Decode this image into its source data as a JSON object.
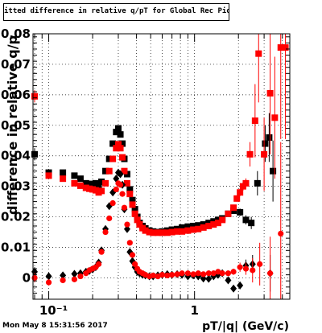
{
  "title": "itted difference in relative q/pT for Global Rec Pion EtapT",
  "timestamp": "Mon May  8 15:31:56 2017",
  "chart_data": {
    "type": "scatter",
    "xlabel": "pT/|q| (GeV/c)",
    "ylabel": "difference in relative q/p",
    "xscale": "log",
    "xlim": [
      0.078,
      4.5
    ],
    "ylim": [
      -0.007,
      0.08
    ],
    "grid": true,
    "yticks": [
      0,
      0.01,
      0.02,
      0.03,
      0.04,
      0.05,
      0.06,
      0.07,
      0.08
    ],
    "ytick_labels": [
      "0",
      "0.01",
      "0.02",
      "0.03",
      "0.04",
      "0.05",
      "0.06",
      "0.07",
      "0.08"
    ],
    "xticks": [
      0.1,
      1
    ],
    "xtick_labels": [
      "10⁻¹",
      "1"
    ],
    "colors": {
      "black": "#000000",
      "red": "#ff0000"
    },
    "series": [
      {
        "color": "black",
        "marker": "square",
        "points": [
          [
            0.08,
            0.0405,
            0.002
          ],
          [
            0.1,
            0.0345,
            0.0008
          ],
          [
            0.125,
            0.0345,
            0.0008
          ],
          [
            0.15,
            0.0335,
            0.0006
          ],
          [
            0.165,
            0.0325,
            0.0005
          ],
          [
            0.18,
            0.031,
            0.0005
          ],
          [
            0.19,
            0.0308,
            0.0005
          ],
          [
            0.2,
            0.0305,
            0.0005
          ],
          [
            0.21,
            0.031,
            0.0005
          ],
          [
            0.22,
            0.0303,
            0.0005
          ],
          [
            0.23,
            0.0315,
            0.0005
          ],
          [
            0.245,
            0.035,
            0.0005
          ],
          [
            0.26,
            0.039,
            0.0005
          ],
          [
            0.275,
            0.044,
            0.0005
          ],
          [
            0.29,
            0.0478,
            0.0005
          ],
          [
            0.3,
            0.049,
            0.0005
          ],
          [
            0.31,
            0.047,
            0.0005
          ],
          [
            0.32,
            0.044,
            0.0005
          ],
          [
            0.33,
            0.039,
            0.0005
          ],
          [
            0.345,
            0.034,
            0.0005
          ],
          [
            0.36,
            0.029,
            0.0005
          ],
          [
            0.375,
            0.0255,
            0.0005
          ],
          [
            0.39,
            0.0225,
            0.0005
          ],
          [
            0.405,
            0.02,
            0.0005
          ],
          [
            0.42,
            0.018,
            0.0005
          ],
          [
            0.44,
            0.017,
            0.0005
          ],
          [
            0.46,
            0.0162,
            0.0005
          ],
          [
            0.49,
            0.0155,
            0.0005
          ],
          [
            0.52,
            0.0152,
            0.0005
          ],
          [
            0.56,
            0.015,
            0.0005
          ],
          [
            0.6,
            0.0152,
            0.0005
          ],
          [
            0.65,
            0.0155,
            0.0005
          ],
          [
            0.7,
            0.0158,
            0.0005
          ],
          [
            0.76,
            0.016,
            0.0005
          ],
          [
            0.82,
            0.0165,
            0.0005
          ],
          [
            0.9,
            0.0168,
            0.0005
          ],
          [
            0.98,
            0.017,
            0.0005
          ],
          [
            1.06,
            0.0172,
            0.0005
          ],
          [
            1.15,
            0.0175,
            0.0005
          ],
          [
            1.25,
            0.018,
            0.0005
          ],
          [
            1.35,
            0.0185,
            0.0006
          ],
          [
            1.45,
            0.019,
            0.0006
          ],
          [
            1.55,
            0.0195,
            0.0007
          ],
          [
            1.7,
            0.021,
            0.0008
          ],
          [
            1.85,
            0.022,
            0.0009
          ],
          [
            2.05,
            0.0215,
            0.0012
          ],
          [
            2.25,
            0.019,
            0.0015
          ],
          [
            2.45,
            0.018,
            0.002
          ],
          [
            2.7,
            0.031,
            0.004
          ],
          [
            3.05,
            0.044,
            0.006
          ],
          [
            3.25,
            0.046,
            0.008
          ],
          [
            3.45,
            0.035,
            0.01
          ]
        ]
      },
      {
        "color": "red",
        "marker": "square",
        "points": [
          [
            0.08,
            0.0595,
            0.002
          ],
          [
            0.1,
            0.0335,
            0.0008
          ],
          [
            0.125,
            0.0325,
            0.0008
          ],
          [
            0.15,
            0.031,
            0.0006
          ],
          [
            0.165,
            0.0302,
            0.0005
          ],
          [
            0.18,
            0.0295,
            0.0005
          ],
          [
            0.19,
            0.0292,
            0.0005
          ],
          [
            0.2,
            0.029,
            0.0005
          ],
          [
            0.21,
            0.0287,
            0.0005
          ],
          [
            0.22,
            0.028,
            0.0005
          ],
          [
            0.23,
            0.0285,
            0.0005
          ],
          [
            0.245,
            0.031,
            0.0005
          ],
          [
            0.26,
            0.035,
            0.0005
          ],
          [
            0.275,
            0.039,
            0.0005
          ],
          [
            0.29,
            0.0425,
            0.0005
          ],
          [
            0.3,
            0.0438,
            0.0005
          ],
          [
            0.31,
            0.0425,
            0.0005
          ],
          [
            0.32,
            0.0395,
            0.0005
          ],
          [
            0.33,
            0.035,
            0.0005
          ],
          [
            0.345,
            0.031,
            0.0005
          ],
          [
            0.36,
            0.0275,
            0.0005
          ],
          [
            0.375,
            0.024,
            0.0005
          ],
          [
            0.39,
            0.021,
            0.0005
          ],
          [
            0.405,
            0.019,
            0.0005
          ],
          [
            0.42,
            0.0175,
            0.0005
          ],
          [
            0.44,
            0.0163,
            0.0005
          ],
          [
            0.46,
            0.0155,
            0.0005
          ],
          [
            0.49,
            0.015,
            0.0005
          ],
          [
            0.52,
            0.0148,
            0.0005
          ],
          [
            0.56,
            0.0148,
            0.0005
          ],
          [
            0.6,
            0.0148,
            0.0005
          ],
          [
            0.65,
            0.0148,
            0.0005
          ],
          [
            0.7,
            0.015,
            0.0005
          ],
          [
            0.76,
            0.0152,
            0.0005
          ],
          [
            0.82,
            0.0152,
            0.0005
          ],
          [
            0.9,
            0.0155,
            0.0005
          ],
          [
            0.98,
            0.0158,
            0.0005
          ],
          [
            1.06,
            0.016,
            0.0005
          ],
          [
            1.15,
            0.0165,
            0.0005
          ],
          [
            1.25,
            0.017,
            0.0005
          ],
          [
            1.35,
            0.0175,
            0.0006
          ],
          [
            1.45,
            0.018,
            0.0006
          ],
          [
            1.55,
            0.019,
            0.0007
          ],
          [
            1.7,
            0.021,
            0.0008
          ],
          [
            1.85,
            0.023,
            0.0009
          ],
          [
            1.95,
            0.026,
            0.001
          ],
          [
            2.05,
            0.028,
            0.0012
          ],
          [
            2.15,
            0.03,
            0.0014
          ],
          [
            2.25,
            0.031,
            0.0016
          ],
          [
            2.4,
            0.0405,
            0.004
          ],
          [
            2.6,
            0.0515,
            0.012
          ],
          [
            2.75,
            0.0735,
            0.016
          ],
          [
            3.0,
            0.0405,
            0.012
          ],
          [
            3.3,
            0.0605,
            0.02
          ],
          [
            3.55,
            0.0525,
            0.02
          ],
          [
            3.9,
            0.0755,
            0.03
          ],
          [
            4.2,
            0.0755,
            0.03
          ]
        ]
      },
      {
        "color": "black",
        "marker": "diamond",
        "points": [
          [
            0.08,
            0.002,
            0.0015
          ],
          [
            0.1,
            0.0005,
            0.001
          ],
          [
            0.125,
            0.0008,
            0.0008
          ],
          [
            0.15,
            0.0013,
            0.0006
          ],
          [
            0.165,
            0.0015,
            0.0005
          ],
          [
            0.18,
            0.002,
            0.0005
          ],
          [
            0.19,
            0.0023,
            0.0005
          ],
          [
            0.2,
            0.0028,
            0.0005
          ],
          [
            0.21,
            0.0035,
            0.0005
          ],
          [
            0.22,
            0.005,
            0.0005
          ],
          [
            0.23,
            0.009,
            0.0005
          ],
          [
            0.245,
            0.016,
            0.0005
          ],
          [
            0.26,
            0.0235,
            0.0005
          ],
          [
            0.275,
            0.028,
            0.0005
          ],
          [
            0.29,
            0.0325,
            0.0005
          ],
          [
            0.3,
            0.0345,
            0.0005
          ],
          [
            0.31,
            0.034,
            0.0005
          ],
          [
            0.32,
            0.0305,
            0.0005
          ],
          [
            0.33,
            0.0225,
            0.0005
          ],
          [
            0.345,
            0.016,
            0.0005
          ],
          [
            0.36,
            0.0085,
            0.0005
          ],
          [
            0.375,
            0.0055,
            0.0005
          ],
          [
            0.39,
            0.0035,
            0.0005
          ],
          [
            0.405,
            0.002,
            0.0005
          ],
          [
            0.42,
            0.0015,
            0.0005
          ],
          [
            0.44,
            0.001,
            0.0005
          ],
          [
            0.46,
            0.0008,
            0.0005
          ],
          [
            0.49,
            0.0005,
            0.0005
          ],
          [
            0.52,
            0.0005,
            0.0005
          ],
          [
            0.56,
            0.0008,
            0.0005
          ],
          [
            0.6,
            0.001,
            0.0005
          ],
          [
            0.65,
            0.0012,
            0.0005
          ],
          [
            0.7,
            0.001,
            0.0005
          ],
          [
            0.76,
            0.0012,
            0.0005
          ],
          [
            0.82,
            0.001,
            0.0005
          ],
          [
            0.9,
            0.0005,
            0.0005
          ],
          [
            0.98,
            0.0008,
            0.0005
          ],
          [
            1.06,
            0.0005,
            0.0005
          ],
          [
            1.15,
            -0.0002,
            0.0005
          ],
          [
            1.25,
            -0.0003,
            0.0005
          ],
          [
            1.35,
            0.0005,
            0.0006
          ],
          [
            1.45,
            0.001,
            0.0006
          ],
          [
            1.55,
            0.0015,
            0.0007
          ],
          [
            1.7,
            -0.0008,
            0.0008
          ],
          [
            1.85,
            -0.0035,
            0.0009
          ],
          [
            2.05,
            -0.0025,
            0.0012
          ],
          [
            2.25,
            0.004,
            0.002
          ],
          [
            2.5,
            0.0045,
            0.003
          ],
          [
            3.3,
            0.0015,
            0.006
          ]
        ]
      },
      {
        "color": "red",
        "marker": "circle",
        "points": [
          [
            0.08,
            0.0,
            0.0015
          ],
          [
            0.1,
            -0.0015,
            0.001
          ],
          [
            0.125,
            -0.0008,
            0.0008
          ],
          [
            0.15,
            -0.0005,
            0.0006
          ],
          [
            0.165,
            0.0005,
            0.0005
          ],
          [
            0.18,
            0.0015,
            0.0005
          ],
          [
            0.19,
            0.0025,
            0.0005
          ],
          [
            0.2,
            0.003,
            0.0005
          ],
          [
            0.21,
            0.0035,
            0.0005
          ],
          [
            0.22,
            0.0045,
            0.0005
          ],
          [
            0.23,
            0.0085,
            0.0005
          ],
          [
            0.245,
            0.015,
            0.0005
          ],
          [
            0.26,
            0.0195,
            0.0005
          ],
          [
            0.275,
            0.0245,
            0.0005
          ],
          [
            0.29,
            0.029,
            0.0005
          ],
          [
            0.3,
            0.031,
            0.0005
          ],
          [
            0.31,
            0.0305,
            0.0005
          ],
          [
            0.32,
            0.0275,
            0.0005
          ],
          [
            0.33,
            0.023,
            0.0005
          ],
          [
            0.345,
            0.0175,
            0.0005
          ],
          [
            0.36,
            0.0115,
            0.0005
          ],
          [
            0.375,
            0.0075,
            0.0005
          ],
          [
            0.39,
            0.0045,
            0.0005
          ],
          [
            0.405,
            0.003,
            0.0005
          ],
          [
            0.42,
            0.002,
            0.0005
          ],
          [
            0.44,
            0.0015,
            0.0005
          ],
          [
            0.46,
            0.001,
            0.0005
          ],
          [
            0.49,
            0.0005,
            0.0005
          ],
          [
            0.52,
            0.0008,
            0.0005
          ],
          [
            0.56,
            0.0005,
            0.0005
          ],
          [
            0.6,
            0.001,
            0.0005
          ],
          [
            0.65,
            0.0008,
            0.0005
          ],
          [
            0.7,
            0.001,
            0.0005
          ],
          [
            0.76,
            0.0012,
            0.0005
          ],
          [
            0.82,
            0.0015,
            0.0005
          ],
          [
            0.9,
            0.0015,
            0.0005
          ],
          [
            0.98,
            0.0012,
            0.0005
          ],
          [
            1.06,
            0.0015,
            0.0005
          ],
          [
            1.15,
            0.0012,
            0.0005
          ],
          [
            1.25,
            0.0015,
            0.0005
          ],
          [
            1.35,
            0.0015,
            0.0006
          ],
          [
            1.45,
            0.002,
            0.0006
          ],
          [
            1.55,
            0.0015,
            0.0007
          ],
          [
            1.7,
            0.0015,
            0.0008
          ],
          [
            1.85,
            0.002,
            0.001
          ],
          [
            2.05,
            0.0035,
            0.0015
          ],
          [
            2.25,
            0.003,
            0.002
          ],
          [
            2.5,
            0.0025,
            0.004
          ],
          [
            2.8,
            0.0045,
            0.007
          ],
          [
            3.3,
            0.0015,
            0.012
          ],
          [
            3.9,
            0.0145,
            0.03
          ]
        ]
      }
    ]
  }
}
